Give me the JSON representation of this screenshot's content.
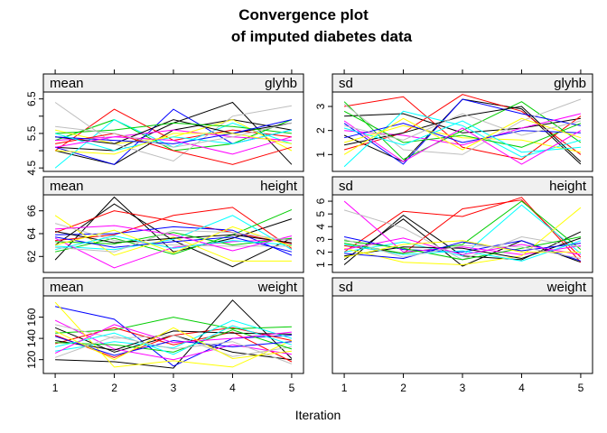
{
  "chart_data": {
    "type": "line",
    "title_line1": "Convergence plot",
    "title_line2": "of imputed diabetes data",
    "xlabel": "Iteration",
    "x": [
      1,
      2,
      3,
      4,
      5
    ],
    "grid": false,
    "legend": "none",
    "panels": [
      {
        "id": "mean-glyhb",
        "stat": "mean",
        "variable": "glyhb",
        "col": 0,
        "row": 0,
        "ylim": [
          4.4,
          6.7
        ],
        "yticks": [
          "4.5",
          "5.0",
          "5.5",
          "6.0",
          "6.5"
        ],
        "ytick_labels": [
          "4.5",
          "",
          "5.5",
          "",
          "6.5"
        ],
        "series": [
          {
            "color": "#000000",
            "values": [
              5.1,
              5.0,
              5.8,
              6.4,
              4.6
            ]
          },
          {
            "color": "#000000",
            "values": [
              5.0,
              4.6,
              5.6,
              5.9,
              5.6
            ]
          },
          {
            "color": "#ff0000",
            "values": [
              5.0,
              6.2,
              5.3,
              5.6,
              5.4
            ]
          },
          {
            "color": "#00cd00",
            "values": [
              5.3,
              5.9,
              5.0,
              5.2,
              5.9
            ]
          },
          {
            "color": "#0000ff",
            "values": [
              5.1,
              4.6,
              6.2,
              5.2,
              5.6
            ]
          },
          {
            "color": "#00ffff",
            "values": [
              4.5,
              5.9,
              5.1,
              5.8,
              5.2
            ]
          },
          {
            "color": "#ff00ff",
            "values": [
              5.3,
              5.4,
              5.6,
              5.4,
              5.3
            ]
          },
          {
            "color": "#ffff00",
            "values": [
              5.6,
              5.2,
              5.4,
              5.9,
              5.0
            ]
          },
          {
            "color": "#bebebe",
            "values": [
              6.4,
              5.2,
              4.7,
              6.0,
              6.3
            ]
          },
          {
            "color": "#000000",
            "values": [
              5.4,
              5.2,
              5.9,
              5.5,
              5.8
            ]
          },
          {
            "color": "#ff0000",
            "values": [
              5.2,
              5.5,
              5.0,
              4.6,
              5.1
            ]
          },
          {
            "color": "#00cd00",
            "values": [
              5.5,
              5.6,
              5.8,
              5.7,
              5.5
            ]
          },
          {
            "color": "#0000ff",
            "values": [
              5.4,
              5.3,
              5.2,
              5.5,
              5.9
            ]
          },
          {
            "color": "#00ffff",
            "values": [
              5.5,
              5.0,
              5.4,
              5.2,
              5.6
            ]
          },
          {
            "color": "#ff00ff",
            "values": [
              5.1,
              5.4,
              5.3,
              4.9,
              5.4
            ]
          },
          {
            "color": "#ffff00",
            "values": [
              5.0,
              4.9,
              5.5,
              5.5,
              5.2
            ]
          },
          {
            "color": "#bebebe",
            "values": [
              5.7,
              5.5,
              5.1,
              5.4,
              5.8
            ]
          }
        ]
      },
      {
        "id": "sd-glyhb",
        "stat": "sd",
        "variable": "glyhb",
        "col": 1,
        "row": 0,
        "ylim": [
          0.3,
          3.6
        ],
        "yticks": [
          "1",
          "2",
          "3"
        ],
        "ytick_labels": [
          "1",
          "2",
          "3"
        ],
        "series": [
          {
            "color": "#000000",
            "values": [
              1.8,
              0.7,
              3.3,
              2.9,
              0.6
            ]
          },
          {
            "color": "#000000",
            "values": [
              2.6,
              2.7,
              1.9,
              2.1,
              2.5
            ]
          },
          {
            "color": "#ff0000",
            "values": [
              3.0,
              3.4,
              1.3,
              0.8,
              2.6
            ]
          },
          {
            "color": "#ff0000",
            "values": [
              1.2,
              1.9,
              3.5,
              2.8,
              1.0
            ]
          },
          {
            "color": "#00cd00",
            "values": [
              3.2,
              0.8,
              2.0,
              3.2,
              1.5
            ]
          },
          {
            "color": "#0000ff",
            "values": [
              2.3,
              0.6,
              3.3,
              2.7,
              2.2
            ]
          },
          {
            "color": "#00ffff",
            "values": [
              0.5,
              2.8,
              2.2,
              0.9,
              1.6
            ]
          },
          {
            "color": "#ff00ff",
            "values": [
              2.0,
              1.8,
              1.4,
              2.1,
              2.7
            ]
          },
          {
            "color": "#ffff00",
            "values": [
              1.5,
              2.2,
              1.7,
              1.6,
              1.1
            ]
          },
          {
            "color": "#bebebe",
            "values": [
              3.1,
              1.2,
              1.0,
              2.4,
              3.3
            ]
          },
          {
            "color": "#000000",
            "values": [
              1.4,
              1.9,
              2.6,
              3.0,
              0.7
            ]
          },
          {
            "color": "#00cd00",
            "values": [
              2.8,
              1.5,
              1.8,
              1.3,
              2.3
            ]
          },
          {
            "color": "#0000ff",
            "values": [
              1.7,
              2.3,
              1.5,
              2.0,
              1.9
            ]
          },
          {
            "color": "#00ffff",
            "values": [
              2.1,
              1.4,
              2.4,
              1.1,
              1.3
            ]
          },
          {
            "color": "#ff00ff",
            "values": [
              2.4,
              0.7,
              2.1,
              0.6,
              2.0
            ]
          },
          {
            "color": "#ffff00",
            "values": [
              1.0,
              2.5,
              1.2,
              2.5,
              1.7
            ]
          },
          {
            "color": "#bebebe",
            "values": [
              2.2,
              1.6,
              2.7,
              1.8,
              2.4
            ]
          }
        ]
      },
      {
        "id": "mean-height",
        "stat": "mean",
        "variable": "height",
        "col": 0,
        "row": 1,
        "ylim": [
          60.6,
          67.4
        ],
        "yticks": [
          "62",
          "64",
          "66"
        ],
        "ytick_labels": [
          "62",
          "64",
          "66"
        ],
        "series": [
          {
            "color": "#000000",
            "values": [
              61.7,
              67.2,
              62.4,
              63.6,
              65.3
            ]
          },
          {
            "color": "#000000",
            "values": [
              63.0,
              66.6,
              63.4,
              61.1,
              63.6
            ]
          },
          {
            "color": "#ff0000",
            "values": [
              63.4,
              63.9,
              65.6,
              66.3,
              62.7
            ]
          },
          {
            "color": "#ff0000",
            "values": [
              64.1,
              66.0,
              65.1,
              64.1,
              63.1
            ]
          },
          {
            "color": "#00cd00",
            "values": [
              62.4,
              63.6,
              62.2,
              63.9,
              66.1
            ]
          },
          {
            "color": "#0000ff",
            "values": [
              63.9,
              64.0,
              64.6,
              64.3,
              62.1
            ]
          },
          {
            "color": "#00ffff",
            "values": [
              62.9,
              62.6,
              63.5,
              65.6,
              62.6
            ]
          },
          {
            "color": "#ff00ff",
            "values": [
              63.6,
              61.0,
              62.8,
              63.3,
              63.5
            ]
          },
          {
            "color": "#ffff00",
            "values": [
              65.6,
              62.1,
              63.7,
              61.6,
              61.6
            ]
          },
          {
            "color": "#bebebe",
            "values": [
              64.9,
              63.4,
              63.0,
              62.9,
              62.9
            ]
          },
          {
            "color": "#000000",
            "values": [
              64.2,
              63.2,
              63.6,
              63.9,
              63.2
            ]
          },
          {
            "color": "#00cd00",
            "values": [
              63.3,
              63.1,
              64.1,
              63.0,
              63.6
            ]
          },
          {
            "color": "#0000ff",
            "values": [
              63.7,
              62.8,
              63.3,
              63.7,
              62.4
            ]
          },
          {
            "color": "#00ffff",
            "values": [
              62.6,
              63.8,
              62.7,
              63.4,
              63.0
            ]
          },
          {
            "color": "#ff00ff",
            "values": [
              64.4,
              64.7,
              63.9,
              62.5,
              63.8
            ]
          },
          {
            "color": "#ffff00",
            "values": [
              63.0,
              64.3,
              62.3,
              64.6,
              62.9
            ]
          },
          {
            "color": "#bebebe",
            "values": [
              62.8,
              62.4,
              64.3,
              64.1,
              63.4
            ]
          }
        ]
      },
      {
        "id": "sd-height",
        "stat": "sd",
        "variable": "height",
        "col": 1,
        "row": 1,
        "ylim": [
          0.4,
          6.5
        ],
        "yticks": [
          "1",
          "2",
          "3",
          "4",
          "5",
          "6"
        ],
        "ytick_labels": [
          "1",
          "2",
          "3",
          "4",
          "5",
          "6"
        ],
        "series": [
          {
            "color": "#000000",
            "values": [
              1.0,
              4.9,
              1.7,
              1.4,
              3.6
            ]
          },
          {
            "color": "#000000",
            "values": [
              1.4,
              4.6,
              0.9,
              2.9,
              1.2
            ]
          },
          {
            "color": "#ff0000",
            "values": [
              2.0,
              5.2,
              4.8,
              6.3,
              1.2
            ]
          },
          {
            "color": "#ff0000",
            "values": [
              2.5,
              1.9,
              5.4,
              6.1,
              1.6
            ]
          },
          {
            "color": "#00cd00",
            "values": [
              2.7,
              1.9,
              2.6,
              6.0,
              2.2
            ]
          },
          {
            "color": "#0000ff",
            "values": [
              3.2,
              2.2,
              2.0,
              2.9,
              1.3
            ]
          },
          {
            "color": "#00ffff",
            "values": [
              2.0,
              2.8,
              1.7,
              5.7,
              1.9
            ]
          },
          {
            "color": "#ff00ff",
            "values": [
              6.0,
              2.0,
              2.4,
              1.8,
              2.5
            ]
          },
          {
            "color": "#ffff00",
            "values": [
              2.3,
              1.2,
              1.0,
              1.7,
              5.5
            ]
          },
          {
            "color": "#bebebe",
            "values": [
              5.3,
              3.9,
              1.4,
              3.2,
              2.4
            ]
          },
          {
            "color": "#000000",
            "values": [
              1.7,
              2.4,
              2.3,
              1.5,
              3.1
            ]
          },
          {
            "color": "#00cd00",
            "values": [
              2.9,
              2.3,
              1.4,
              2.3,
              3.2
            ]
          },
          {
            "color": "#0000ff",
            "values": [
              1.9,
              1.5,
              2.8,
              2.1,
              2.7
            ]
          },
          {
            "color": "#00ffff",
            "values": [
              2.6,
              1.8,
              2.1,
              1.3,
              2.9
            ]
          },
          {
            "color": "#ff00ff",
            "values": [
              2.2,
              3.1,
              1.8,
              2.6,
              1.8
            ]
          },
          {
            "color": "#ffff00",
            "values": [
              1.6,
              2.6,
              2.9,
              2.0,
              2.0
            ]
          },
          {
            "color": "#bebebe",
            "values": [
              3.0,
              1.6,
              2.5,
              2.4,
              1.5
            ]
          }
        ]
      },
      {
        "id": "mean-weight",
        "stat": "mean",
        "variable": "weight",
        "col": 0,
        "row": 2,
        "ylim": [
          107,
          180
        ],
        "yticks": [
          "120",
          "140",
          "160"
        ],
        "ytick_labels": [
          "120",
          "140",
          "160"
        ],
        "series": [
          {
            "color": "#000000",
            "values": [
              120,
              118,
              112,
              176,
              121
            ]
          },
          {
            "color": "#000000",
            "values": [
              150,
              127,
              143,
              127,
              120
            ]
          },
          {
            "color": "#0000ff",
            "values": [
              170,
              158,
              114,
              140,
              143
            ]
          },
          {
            "color": "#ff0000",
            "values": [
              143,
              122,
              143,
              150,
              138
            ]
          },
          {
            "color": "#ff0000",
            "values": [
              135,
              150,
              134,
              146,
              118
            ]
          },
          {
            "color": "#00cd00",
            "values": [
              145,
              148,
              160,
              149,
              151
            ]
          },
          {
            "color": "#00ffff",
            "values": [
              128,
              137,
              131,
              157,
              140
            ]
          },
          {
            "color": "#ff00ff",
            "values": [
              157,
              130,
              120,
              134,
              125
            ]
          },
          {
            "color": "#ffff00",
            "values": [
              174,
              113,
              119,
              113,
              138
            ]
          },
          {
            "color": "#bebebe",
            "values": [
              153,
              140,
              143,
              123,
              132
            ]
          },
          {
            "color": "#000000",
            "values": [
              138,
              129,
              147,
              145,
              144
            ]
          },
          {
            "color": "#00cd00",
            "values": [
              136,
              134,
              127,
              148,
              130
            ]
          },
          {
            "color": "#0000ff",
            "values": [
              142,
              124,
              138,
              132,
              137
            ]
          },
          {
            "color": "#00ffff",
            "values": [
              132,
              145,
              125,
              152,
              134
            ]
          },
          {
            "color": "#ff00ff",
            "values": [
              126,
              153,
              136,
              140,
              146
            ]
          },
          {
            "color": "#ffff00",
            "values": [
              147,
              120,
              150,
              121,
              128
            ]
          },
          {
            "color": "#bebebe",
            "values": [
              122,
              142,
              130,
              137,
              116
            ]
          }
        ]
      },
      {
        "id": "sd-weight",
        "stat": "sd",
        "variable": "weight",
        "col": 1,
        "row": 2,
        "ylim": [
          0,
          1
        ],
        "yticks": [],
        "ytick_labels": [],
        "series": []
      }
    ]
  }
}
